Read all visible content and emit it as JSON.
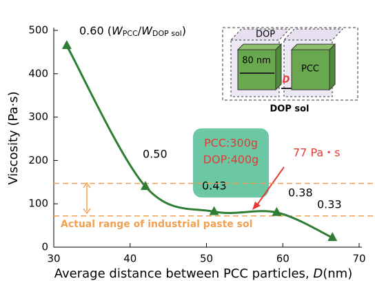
{
  "chart_data": {
    "type": "line",
    "x_label_parts": [
      "Average distance between PCC particles, ",
      "D",
      "(nm)"
    ],
    "y_label": "Viscosity  (Pa·s)",
    "x": [
      31.7,
      42,
      51,
      59.2,
      66.5
    ],
    "series": [
      {
        "color": "#2e7d32",
        "values": [
          465,
          140,
          82,
          80,
          22
        ]
      }
    ],
    "point_labels": [
      "0.50",
      "0.43",
      "0.38",
      "0.33"
    ],
    "first_label_parts": [
      "0.60 (",
      "W",
      "PCC",
      "/",
      "W",
      "DOP sol",
      ")"
    ],
    "xlim": [
      30,
      70
    ],
    "xticks": [
      30,
      40,
      50,
      60,
      70
    ],
    "ylim": [
      0,
      500
    ],
    "yticks": [
      0,
      100,
      200,
      300,
      400,
      500
    ],
    "reference_lines": [
      {
        "value": 147,
        "color": "#f0a050"
      },
      {
        "value": 72,
        "color": "#f0a050"
      }
    ],
    "range_label": "Actual range of industrial paste sol",
    "box_lines": [
      "PCC:300g",
      "DOP:400g"
    ],
    "callout": "77 Pa・s",
    "inset": {
      "dop": "DOP",
      "size": "80 nm",
      "d": "D",
      "pcc": "PCC",
      "title": "DOP sol"
    }
  }
}
